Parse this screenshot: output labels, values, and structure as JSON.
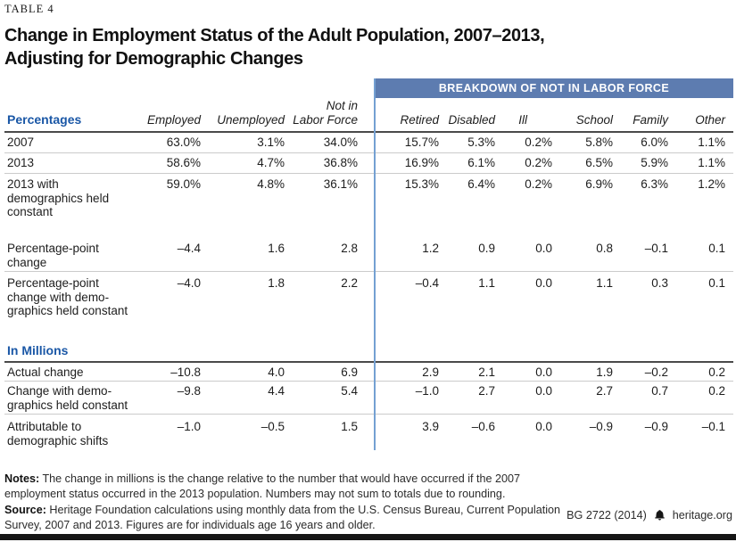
{
  "doc": {
    "table_label": "TABLE 4",
    "title": "Change in Employment Status of the Adult Population, 2007–2013,\nAdjusting for Demographic Changes"
  },
  "table": {
    "group_header": "BREAKDOWN OF NOT IN LABOR FORCE",
    "section_percent_label": "Percentages",
    "section_millions_label": "In Millions",
    "columns": [
      "Employed",
      "Unemployed",
      "Not in\nLabor Force",
      "Retired",
      "Disabled",
      "Ill",
      "School",
      "Family",
      "Other"
    ],
    "rows_percent": [
      {
        "label": "2007",
        "values": [
          "63.0%",
          "3.1%",
          "34.0%",
          "15.7%",
          "5.3%",
          "0.2%",
          "5.8%",
          "6.0%",
          "1.1%"
        ]
      },
      {
        "label": "2013",
        "values": [
          "58.6%",
          "4.7%",
          "36.8%",
          "16.9%",
          "6.1%",
          "0.2%",
          "6.5%",
          "5.9%",
          "1.1%"
        ]
      },
      {
        "label": "2013 with demographics held constant",
        "values": [
          "59.0%",
          "4.8%",
          "36.1%",
          "15.3%",
          "6.4%",
          "0.2%",
          "6.9%",
          "6.3%",
          "1.2%"
        ]
      },
      {
        "label": "Percentage-point change",
        "values": [
          "–4.4",
          "1.6",
          "2.8",
          "1.2",
          "0.9",
          "0.0",
          "0.8",
          "–0.1",
          "0.1"
        ]
      },
      {
        "label": "Percentage-point change with demo-graphics held constant",
        "values": [
          "–4.0",
          "1.8",
          "2.2",
          "–0.4",
          "1.1",
          "0.0",
          "1.1",
          "0.3",
          "0.1"
        ]
      }
    ],
    "rows_millions": [
      {
        "label": "Actual change",
        "values": [
          "–10.8",
          "4.0",
          "6.9",
          "2.9",
          "2.1",
          "0.0",
          "1.9",
          "–0.2",
          "0.2"
        ]
      },
      {
        "label": "Change with demo-graphics held constant",
        "values": [
          "–9.8",
          "4.4",
          "5.4",
          "–1.0",
          "2.7",
          "0.0",
          "2.7",
          "0.7",
          "0.2"
        ]
      },
      {
        "label": "Attributable to demographic shifts",
        "values": [
          "–1.0",
          "–0.5",
          "1.5",
          "3.9",
          "–0.6",
          "0.0",
          "–0.9",
          "–0.9",
          "–0.1"
        ]
      }
    ]
  },
  "notes": {
    "notes_label": "Notes:",
    "notes_text": "The change in millions is the change relative to the number that would have occurred if the 2007 employment status occurred in the 2013 population. Numbers may not sum to totals due to rounding.",
    "source_label": "Source:",
    "source_text": "Heritage Foundation calculations using monthly data from the U.S. Census Bureau, Current Population Survey, 2007 and 2013. Figures are for individuals age 16 years and older."
  },
  "footer": {
    "doc_id": "BG 2722 (2014)",
    "site": "heritage.org"
  },
  "colors": {
    "band_blue": "#5d7cb0",
    "divider_blue": "#74a0d2",
    "heading_blue": "#1a57a6",
    "rule_dark": "#4a4a4a",
    "rule_light": "#cbcbcb"
  }
}
